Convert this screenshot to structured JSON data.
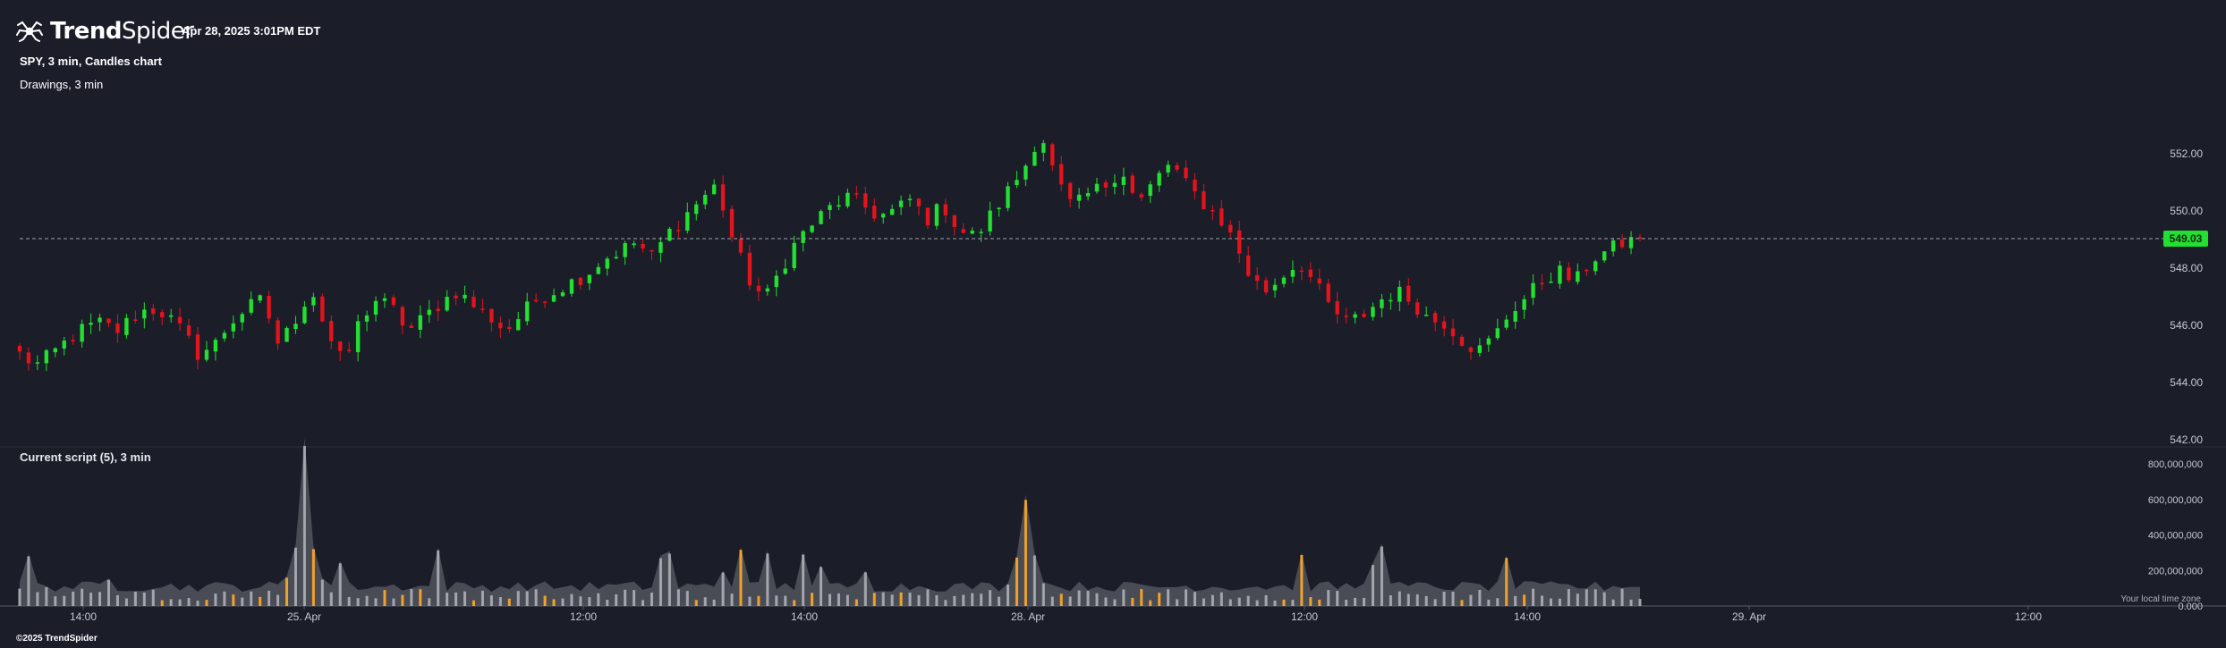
{
  "header": {
    "brand_bold": "Trend",
    "brand_light": "Spider",
    "timestamp": "Apr 28, 2025 3:01PM EDT",
    "symbol_info": "SPY, 3 min, Candles chart",
    "drawings_info": "Drawings, 3 min"
  },
  "icons": {
    "logo": "spider-logo-icon"
  },
  "lower_pane": {
    "title": "Current script (5), 3 min"
  },
  "footer": {
    "copyright": "©2025 TrendSpider",
    "local_time_label": "Your local time zone"
  },
  "colors": {
    "background": "#1b1d29",
    "up": "#21e02f",
    "down": "#e2141c",
    "volume_gray": "#a3a6ad",
    "volume_highlight": "#f0a12a",
    "volume_area": "#5d5f68",
    "price_badge": "#21e02f"
  },
  "chart_data": [
    {
      "type": "candlestick",
      "title": "SPY, 3 min, Candles chart",
      "y_ticks": [
        "542.00",
        "544.00",
        "546.00",
        "548.00",
        "550.00",
        "552.00"
      ],
      "ylim": [
        541.6,
        554.4
      ],
      "last_price": 549.03,
      "last_price_label": "549.03",
      "x_ticks": [
        "14:00",
        "25. Apr",
        "12:00",
        "14:00",
        "28. Apr",
        "12:00",
        "14:00",
        "29. Apr",
        "12:00"
      ],
      "grid": false,
      "close_path": [
        545.0,
        544.6,
        545.0,
        545.5,
        545.9,
        546.1,
        545.8,
        546.3,
        546.6,
        546.4,
        545.8,
        545.0,
        545.3,
        546.1,
        546.6,
        546.9,
        545.3,
        546.2,
        547.3,
        545.7,
        544.6,
        546.2,
        546.9,
        546.6,
        545.8,
        546.3,
        546.8,
        547.2,
        546.7,
        546.3,
        545.8,
        546.4,
        547.0,
        547.2,
        547.5,
        547.8,
        548.3,
        548.6,
        548.9,
        548.4,
        549.2,
        549.8,
        550.4,
        550.9,
        549.0,
        547.6,
        546.9,
        548.0,
        549.0,
        549.6,
        550.1,
        550.5,
        550.2,
        549.8,
        550.0,
        550.4,
        549.7,
        550.2,
        549.3,
        549.1,
        549.9,
        550.7,
        551.5,
        552.8,
        551.0,
        550.1,
        550.6,
        550.9,
        551.5,
        550.2,
        551.0,
        551.7,
        550.9,
        550.3,
        549.8,
        548.9,
        547.6,
        547.2,
        547.8,
        548.2,
        547.4,
        546.5,
        546.1,
        546.4,
        546.9,
        547.2,
        546.8,
        546.2,
        546.1,
        545.5,
        545.1,
        545.6,
        546.5,
        547.0,
        547.6,
        547.9,
        547.5,
        548.3,
        548.6,
        548.9,
        549.03
      ],
      "candle_count": 183,
      "series": [
        {
          "name": "Volume",
          "type": "bar",
          "ylim": [
            0,
            800000000
          ],
          "y_ticks": [
            "0.000",
            "200,000,000",
            "400,000,000",
            "600,000,000",
            "800,000,000"
          ]
        }
      ]
    }
  ]
}
